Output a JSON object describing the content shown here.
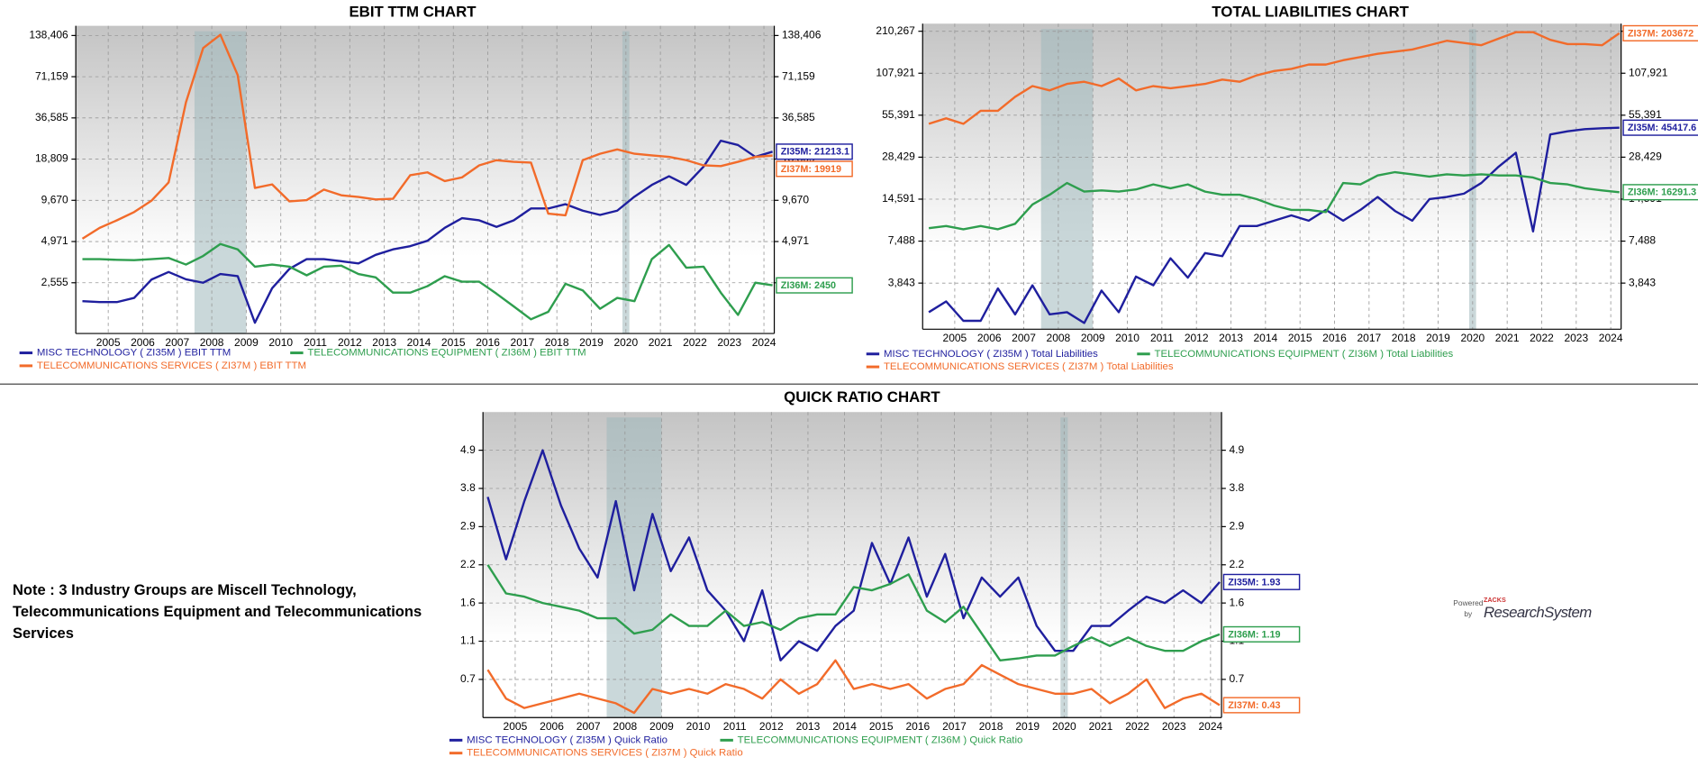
{
  "chart_data": [
    {
      "type": "line",
      "title": "EBIT TTM CHART",
      "log_scale": true,
      "grid": true,
      "x": [
        2004.25,
        2004.75,
        2005.25,
        2005.75,
        2006.25,
        2006.75,
        2007.25,
        2007.75,
        2008.25,
        2008.75,
        2009.25,
        2009.75,
        2010.25,
        2010.75,
        2011.25,
        2011.75,
        2012.25,
        2012.75,
        2013.25,
        2013.75,
        2014.25,
        2014.75,
        2015.25,
        2015.75,
        2016.25,
        2016.75,
        2017.25,
        2017.75,
        2018.25,
        2018.75,
        2019.25,
        2019.75,
        2020.25,
        2020.75,
        2021.25,
        2021.75,
        2022.25,
        2022.75,
        2023.25,
        2023.75,
        2024.25
      ],
      "xlim": [
        2004.06,
        2024.3
      ],
      "xticks": [
        2005,
        2006,
        2007,
        2008,
        2009,
        2010,
        2011,
        2012,
        2013,
        2014,
        2015,
        2016,
        2017,
        2018,
        2019,
        2020,
        2021,
        2022,
        2023,
        2024
      ],
      "ylim": [
        1126,
        161800
      ],
      "yticks": [
        {
          "value": 2555,
          "label": "2,555"
        },
        {
          "value": 4971,
          "label": "4,971"
        },
        {
          "value": 9670,
          "label": "9,670"
        },
        {
          "value": 18809,
          "label": "18,809"
        },
        {
          "value": 36585,
          "label": "36,585"
        },
        {
          "value": 71159,
          "label": "71,159"
        },
        {
          "value": 138406,
          "label": "138,406"
        }
      ],
      "shaded_ranges": [
        [
          2007.5,
          2009.0
        ],
        [
          2019.9,
          2020.1
        ]
      ],
      "series": [
        {
          "name": "MISC TECHNOLOGY ( ZI35M ) EBIT TTM",
          "color": "#1f1f9e",
          "end_label": "ZI35M: 21213.1",
          "values": [
            1900,
            1870,
            1870,
            2000,
            2690,
            3040,
            2700,
            2555,
            2940,
            2840,
            1340,
            2340,
            3200,
            3740,
            3740,
            3620,
            3490,
            4010,
            4380,
            4610,
            5030,
            6200,
            7250,
            7000,
            6300,
            7000,
            8480,
            8480,
            9090,
            8180,
            7630,
            8180,
            10250,
            12400,
            14260,
            12400,
            16660,
            25300,
            23600,
            19500,
            21213.1
          ]
        },
        {
          "name": "TELECOMMUNICATIONS EQUIPMENT ( ZI36M ) EBIT TTM",
          "color": "#2e9e4e",
          "end_label": "ZI36M: 2450",
          "values": [
            3740,
            3740,
            3700,
            3680,
            3740,
            3810,
            3430,
            3940,
            4780,
            4380,
            3310,
            3430,
            3310,
            2880,
            3310,
            3370,
            2940,
            2790,
            2180,
            2180,
            2420,
            2840,
            2600,
            2600,
            2140,
            1745,
            1415,
            1600,
            2510,
            2260,
            1680,
            2000,
            1900,
            3740,
            4700,
            3260,
            3310,
            2180,
            1520,
            2555,
            2450
          ]
        },
        {
          "name": "TELECOMMUNICATIONS SERVICES ( ZI37M ) EBIT TTM",
          "color": "#f26b2a",
          "end_label": "ZI37M: 19919",
          "values": [
            5200,
            6200,
            7000,
            8000,
            9600,
            12900,
            47000,
            113000,
            140000,
            73000,
            11800,
            12500,
            9500,
            9700,
            11500,
            10500,
            10200,
            9800,
            9900,
            14500,
            15200,
            13200,
            14000,
            17000,
            18500,
            18000,
            17800,
            7800,
            7600,
            18500,
            20500,
            22000,
            20500,
            20000,
            19500,
            18500,
            17000,
            16800,
            18000,
            19500,
            19919
          ]
        }
      ]
    },
    {
      "type": "line",
      "title": "TOTAL LIABILITIES CHART",
      "log_scale": true,
      "grid": true,
      "x": [
        2004.25,
        2004.75,
        2005.25,
        2005.75,
        2006.25,
        2006.75,
        2007.25,
        2007.75,
        2008.25,
        2008.75,
        2009.25,
        2009.75,
        2010.25,
        2010.75,
        2011.25,
        2011.75,
        2012.25,
        2012.75,
        2013.25,
        2013.75,
        2014.25,
        2014.75,
        2015.25,
        2015.75,
        2016.25,
        2016.75,
        2017.25,
        2017.75,
        2018.25,
        2018.75,
        2019.25,
        2019.75,
        2020.25,
        2020.75,
        2021.25,
        2021.75,
        2022.25,
        2022.75,
        2023.25,
        2023.75,
        2024.25
      ],
      "xlim": [
        2004.07,
        2024.3
      ],
      "xticks": [
        2005,
        2006,
        2007,
        2008,
        2009,
        2010,
        2011,
        2012,
        2013,
        2014,
        2015,
        2016,
        2017,
        2018,
        2019,
        2020,
        2021,
        2022,
        2023,
        2024
      ],
      "ylim": [
        1847,
        237200
      ],
      "yticks": [
        {
          "value": 3843,
          "label": "3,843"
        },
        {
          "value": 7488,
          "label": "7,488"
        },
        {
          "value": 14591,
          "label": "14,591"
        },
        {
          "value": 28429,
          "label": "28,429"
        },
        {
          "value": 55391,
          "label": "55,391"
        },
        {
          "value": 107921,
          "label": "107,921"
        },
        {
          "value": 210267,
          "label": "210,267"
        }
      ],
      "shaded_ranges": [
        [
          2007.5,
          2009.0
        ],
        [
          2019.9,
          2020.1
        ]
      ],
      "series": [
        {
          "name": "MISC TECHNOLOGY ( ZI35M ) Total Liabilities",
          "color": "#1f1f9e",
          "end_label": "ZI35M: 45417.6",
          "values": [
            2420,
            2870,
            2110,
            2110,
            3530,
            2340,
            3710,
            2340,
            2420,
            2040,
            3410,
            2420,
            4260,
            3710,
            5700,
            4190,
            6200,
            5900,
            9520,
            9520,
            10370,
            11280,
            10370,
            12290,
            10370,
            12290,
            15110,
            12100,
            10370,
            14600,
            15110,
            15910,
            18870,
            24400,
            30500,
            8740,
            40800,
            42900,
            44400,
            45000,
            45417.6
          ]
        },
        {
          "name": "TELECOMMUNICATIONS EQUIPMENT ( ZI36M ) Total Liabilities",
          "color": "#2e9e4e",
          "end_label": "ZI36M: 16291.3",
          "values": [
            9200,
            9520,
            9040,
            9520,
            9040,
            9860,
            13400,
            15650,
            18870,
            16460,
            16750,
            16460,
            17030,
            18450,
            17330,
            18450,
            16460,
            15650,
            15650,
            14600,
            13180,
            12290,
            12290,
            11880,
            18870,
            18450,
            21260,
            22400,
            21650,
            20900,
            21650,
            21260,
            21650,
            21260,
            21260,
            20560,
            18870,
            18450,
            17330,
            16750,
            16291.3
          ]
        },
        {
          "name": "TELECOMMUNICATIONS SERVICES ( ZI37M ) Total Liabilities",
          "color": "#f26b2a",
          "end_label": "ZI37M: 203672",
          "values": [
            48300,
            52700,
            48300,
            59400,
            59400,
            74200,
            88000,
            82200,
            91100,
            94200,
            88000,
            99200,
            82200,
            88000,
            85000,
            88000,
            91100,
            97500,
            94200,
            104400,
            111800,
            115700,
            123900,
            123900,
            132600,
            139500,
            146900,
            152000,
            157400,
            168500,
            180600,
            174600,
            168500,
            186900,
            207100,
            207100,
            183700,
            171400,
            171400,
            168500,
            203672
          ]
        }
      ]
    },
    {
      "type": "line",
      "title": "QUICK RATIO CHART",
      "log_scale": false,
      "grid": true,
      "x": [
        2004.25,
        2004.75,
        2005.25,
        2005.75,
        2006.25,
        2006.75,
        2007.25,
        2007.75,
        2008.25,
        2008.75,
        2009.25,
        2009.75,
        2010.25,
        2010.75,
        2011.25,
        2011.75,
        2012.25,
        2012.75,
        2013.25,
        2013.75,
        2014.25,
        2014.75,
        2015.25,
        2015.75,
        2016.25,
        2016.75,
        2017.25,
        2017.75,
        2018.25,
        2018.75,
        2019.25,
        2019.75,
        2020.25,
        2020.75,
        2021.25,
        2021.75,
        2022.25,
        2022.75,
        2023.25,
        2023.75,
        2024.25
      ],
      "xlim": [
        2004.12,
        2024.3
      ],
      "xticks": [
        2005,
        2006,
        2007,
        2008,
        2009,
        2010,
        2011,
        2012,
        2013,
        2014,
        2015,
        2016,
        2017,
        2018,
        2019,
        2020,
        2021,
        2022,
        2023,
        2024
      ],
      "ylim": [
        0.3,
        5.0
      ],
      "yticks": [
        0.7,
        1.1,
        1.6,
        2.2,
        2.9,
        3.8,
        4.9
      ],
      "shaded_ranges": [
        [
          2007.5,
          2009.0
        ],
        [
          2019.9,
          2020.1
        ]
      ],
      "series": [
        {
          "name": "MISC TECHNOLOGY ( ZI35M ) Quick Ratio",
          "color": "#1f1f9e",
          "end_label": "ZI35M: 1.93",
          "values": [
            3.6,
            2.3,
            3.5,
            4.9,
            3.4,
            2.5,
            2.0,
            3.5,
            1.8,
            3.2,
            2.1,
            2.7,
            1.8,
            1.5,
            1.1,
            1.8,
            0.9,
            1.1,
            1.0,
            1.3,
            1.5,
            2.6,
            1.9,
            2.7,
            1.7,
            2.4,
            1.4,
            2.0,
            1.7,
            2.0,
            1.3,
            1.0,
            1.0,
            1.3,
            1.3,
            1.5,
            1.7,
            1.6,
            1.8,
            1.6,
            1.93
          ]
        },
        {
          "name": "TELECOMMUNICATIONS EQUIPMENT ( ZI36M ) Quick Ratio",
          "color": "#2e9e4e",
          "end_label": "ZI36M: 1.19",
          "values": [
            2.2,
            1.75,
            1.7,
            1.6,
            1.55,
            1.5,
            1.4,
            1.4,
            1.2,
            1.25,
            1.45,
            1.3,
            1.3,
            1.5,
            1.3,
            1.35,
            1.25,
            1.4,
            1.45,
            1.45,
            1.85,
            1.8,
            1.9,
            2.05,
            1.5,
            1.35,
            1.55,
            1.2,
            0.9,
            0.92,
            0.95,
            0.95,
            1.05,
            1.15,
            1.05,
            1.15,
            1.05,
            1.0,
            1.0,
            1.1,
            1.19
          ]
        },
        {
          "name": "TELECOMMUNICATIONS SERVICES ( ZI37M ) Quick Ratio",
          "color": "#f26b2a",
          "end_label": "ZI37M: 0.43",
          "values": [
            0.8,
            0.5,
            0.4,
            0.45,
            0.5,
            0.55,
            0.5,
            0.45,
            0.35,
            0.6,
            0.55,
            0.6,
            0.55,
            0.65,
            0.6,
            0.5,
            0.7,
            0.55,
            0.65,
            0.9,
            0.6,
            0.65,
            0.6,
            0.65,
            0.5,
            0.6,
            0.65,
            0.85,
            0.75,
            0.65,
            0.6,
            0.55,
            0.55,
            0.6,
            0.45,
            0.55,
            0.7,
            0.4,
            0.5,
            0.55,
            0.43
          ]
        }
      ]
    }
  ],
  "note": "Note : 3 Industry Groups are Miscell Technology, Telecommunications Equipment and Telecommunications Services",
  "logo": {
    "powered": "Powered",
    "brand": "ZACKS",
    "by": "by",
    "name": "ResearchSystem"
  }
}
